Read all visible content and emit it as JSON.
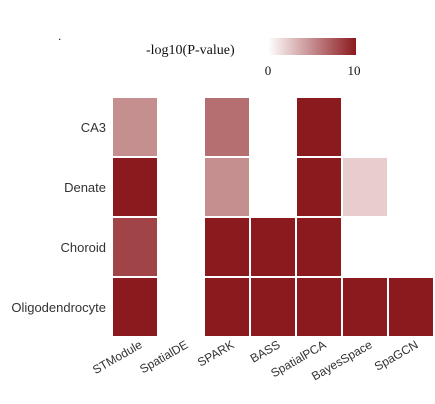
{
  "chart_data": {
    "type": "heatmap",
    "legend_title": "-log10(P-value)",
    "legend_min_label": "0",
    "legend_max_label": "10",
    "color_low": "#f7eeea",
    "color_high": "#8b1a1f",
    "value_range": [
      0,
      10
    ],
    "rows": [
      "CA3",
      "Denate",
      "Choroid",
      "Oligodendrocyte"
    ],
    "columns": [
      "STModule",
      "SpatialDE",
      "SPARK",
      "BASS",
      "SpatialPCA",
      "BayesSpace",
      "SpaGCN"
    ],
    "values": [
      [
        4.5,
        null,
        6,
        null,
        10,
        null,
        null
      ],
      [
        10,
        null,
        4.5,
        null,
        10,
        1.5,
        null
      ],
      [
        8,
        null,
        10,
        10,
        10,
        null,
        null
      ],
      [
        10,
        null,
        10,
        10,
        10,
        10,
        10
      ]
    ],
    "grid": false
  }
}
